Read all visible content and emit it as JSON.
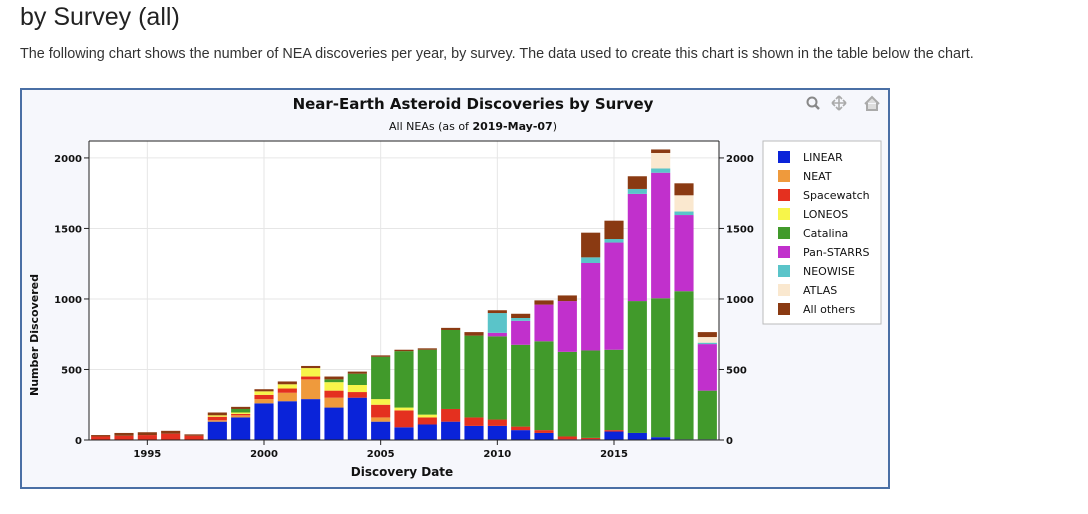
{
  "page": {
    "heading": "by Survey (all)",
    "intro": "The following chart shows the number of NEA discoveries per year, by survey. The data used to create this chart is shown in the table below the chart."
  },
  "toolbar": {
    "zoom_icon": "magnifier-plus-icon",
    "pan_icon": "move-arrows-icon",
    "reset_icon": "home-icon"
  },
  "colors": {
    "LINEAR": "#0a23d9",
    "NEAT": "#ef9a3c",
    "Spacewatch": "#e4301f",
    "LONEOS": "#f7f54a",
    "Catalina": "#419a2b",
    "Pan-STARRS": "#c130cc",
    "NEOWISE": "#5ac4c9",
    "ATLAS": "#fae8cf",
    "All others": "#8a3a12"
  },
  "chart_data": {
    "type": "bar",
    "stacked": true,
    "title": "Near-Earth Asteroid Discoveries by Survey",
    "subtitle_prefix": "All NEAs (as of ",
    "subtitle_date": "2019-May-07",
    "subtitle_suffix": ")",
    "xlabel": "Discovery Date",
    "ylabel": "Number Discovered",
    "xlim": [
      1992.5,
      2019.5
    ],
    "ylim": [
      0,
      2120
    ],
    "x_ticks": [
      1995,
      2000,
      2005,
      2010,
      2015
    ],
    "y_ticks": [
      0,
      500,
      1000,
      1500,
      2000
    ],
    "grid": true,
    "legend_position": "right",
    "x": [
      1993,
      1994,
      1995,
      1996,
      1997,
      1998,
      1999,
      2000,
      2001,
      2002,
      2003,
      2004,
      2005,
      2006,
      2007,
      2008,
      2009,
      2010,
      2011,
      2012,
      2013,
      2014,
      2015,
      2016,
      2017,
      2018,
      2019
    ],
    "series": [
      {
        "name": "LINEAR",
        "values": [
          0,
          0,
          0,
          0,
          0,
          130,
          160,
          260,
          275,
          290,
          230,
          300,
          130,
          90,
          110,
          130,
          100,
          100,
          70,
          50,
          5,
          5,
          60,
          50,
          20,
          5,
          5
        ]
      },
      {
        "name": "NEAT",
        "values": [
          0,
          0,
          0,
          0,
          0,
          10,
          15,
          30,
          60,
          140,
          70,
          0,
          30,
          0,
          0,
          0,
          0,
          0,
          0,
          0,
          0,
          0,
          0,
          0,
          0,
          0,
          0
        ]
      },
      {
        "name": "Spacewatch",
        "values": [
          25,
          30,
          35,
          45,
          30,
          25,
          10,
          30,
          30,
          20,
          50,
          40,
          90,
          120,
          50,
          90,
          60,
          45,
          25,
          20,
          20,
          10,
          10,
          0,
          0,
          0,
          0
        ]
      },
      {
        "name": "LONEOS",
        "values": [
          0,
          0,
          0,
          0,
          0,
          10,
          10,
          25,
          30,
          60,
          60,
          50,
          40,
          20,
          20,
          0,
          0,
          0,
          0,
          0,
          0,
          0,
          0,
          0,
          0,
          0,
          0
        ]
      },
      {
        "name": "Catalina",
        "values": [
          0,
          0,
          0,
          0,
          0,
          0,
          25,
          0,
          0,
          0,
          20,
          80,
          300,
          400,
          460,
          560,
          580,
          590,
          580,
          630,
          600,
          620,
          570,
          935,
          985,
          1050,
          345
        ]
      },
      {
        "name": "Pan-STARRS",
        "values": [
          0,
          0,
          0,
          0,
          0,
          0,
          0,
          0,
          0,
          0,
          0,
          0,
          0,
          0,
          0,
          0,
          0,
          25,
          170,
          260,
          360,
          620,
          760,
          760,
          890,
          540,
          330
        ]
      },
      {
        "name": "NEOWISE",
        "values": [
          0,
          0,
          0,
          0,
          0,
          0,
          0,
          0,
          0,
          0,
          0,
          0,
          0,
          0,
          0,
          0,
          0,
          140,
          20,
          0,
          0,
          40,
          25,
          35,
          30,
          25,
          10
        ]
      },
      {
        "name": "ATLAS",
        "values": [
          0,
          0,
          0,
          0,
          0,
          0,
          0,
          0,
          0,
          0,
          0,
          0,
          0,
          0,
          0,
          0,
          0,
          0,
          0,
          0,
          0,
          0,
          0,
          0,
          110,
          115,
          40
        ]
      },
      {
        "name": "All others",
        "values": [
          10,
          20,
          20,
          20,
          10,
          20,
          15,
          15,
          20,
          15,
          20,
          15,
          10,
          10,
          10,
          15,
          25,
          20,
          30,
          30,
          40,
          175,
          130,
          90,
          25,
          85,
          35
        ]
      }
    ]
  }
}
